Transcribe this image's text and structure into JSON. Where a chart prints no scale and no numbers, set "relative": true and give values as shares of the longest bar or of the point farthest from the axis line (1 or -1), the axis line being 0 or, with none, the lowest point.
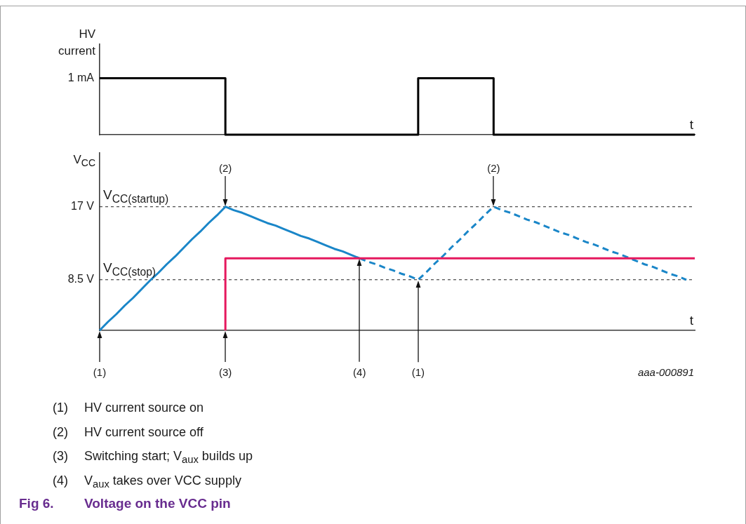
{
  "chart_data": [
    {
      "type": "step",
      "relative": true,
      "ylabel": "HV current",
      "xlabel": "t",
      "categories": [
        null,
        null,
        null,
        null,
        null,
        null,
        null,
        null,
        null,
        null,
        null,
        null,
        null,
        null,
        null,
        null,
        null,
        null,
        null,
        null,
        null,
        null,
        null,
        null,
        null,
        null,
        null,
        null,
        null,
        null,
        null,
        null,
        null,
        null,
        null,
        null,
        null,
        null,
        null,
        null,
        null,
        null,
        null,
        null,
        null,
        null,
        null,
        null,
        null,
        null,
        null,
        null,
        null,
        null,
        null,
        null,
        null,
        null,
        null,
        null,
        null,
        null,
        null,
        null,
        null,
        null,
        null,
        null,
        null,
        null,
        null,
        null
      ],
      "color": "#000000",
      "values": [
        1,
        1,
        1,
        1,
        1,
        1,
        1,
        1,
        1,
        1,
        1,
        1,
        1,
        1,
        1,
        1,
        0,
        0,
        0,
        0,
        0,
        0,
        0,
        0,
        0,
        0,
        0,
        0,
        0,
        0,
        0,
        0,
        0,
        0,
        0,
        0,
        0,
        0,
        0,
        1,
        1,
        1,
        1,
        1,
        1,
        1,
        1,
        1,
        0,
        0,
        0,
        0,
        0,
        0,
        0,
        0,
        0,
        0,
        0,
        0,
        0,
        0,
        0,
        0,
        0,
        0,
        0,
        0,
        0,
        0,
        0,
        0
      ],
      "annotations": [
        "1 mA"
      ]
    },
    {
      "type": "line",
      "title": "Fig 6.\tVoltage on the VCC pin",
      "ylabel": "V$_{CC}$",
      "xlabel": "t",
      "categories": [
        "(1)",
        null,
        null,
        null,
        null,
        null,
        null,
        null,
        null,
        null,
        null,
        null,
        null,
        null,
        null,
        "(3)",
        null,
        null,
        null,
        null,
        null,
        null,
        null,
        null,
        null,
        null,
        null,
        null,
        null,
        null,
        null,
        "(4)",
        null,
        null,
        null,
        null,
        null,
        null,
        "(1)",
        null,
        null,
        null,
        null,
        null,
        null,
        null,
        null,
        null,
        null,
        null,
        null,
        null,
        null,
        null,
        null,
        null,
        null,
        null,
        null,
        null,
        null,
        null,
        null,
        null,
        null,
        null,
        null,
        null,
        null,
        null,
        null,
        null
      ],
      "ylim": [
        2.6,
        23.3
      ],
      "yticks": [
        {
          "value": 17,
          "label": "17 V"
        },
        {
          "value": 8.5,
          "label": "8.5 V"
        }
      ],
      "ref_lines": [
        {
          "axis": "y",
          "value": 17,
          "label": "V$_{CC(startup)}$",
          "color": "#222222",
          "line_style": "dashed"
        },
        {
          "axis": "y",
          "value": 8.5,
          "label": "V$_{CC(stop)}$",
          "color": "#222222",
          "line_style": "dashed"
        }
      ],
      "series": [
        {
          "type": "line",
          "color": "#1a86c8",
          "values": [
            2.6,
            3.6,
            4.5,
            5.5,
            6.4,
            7.4,
            8.4,
            9.3,
            10.3,
            11.2,
            12.2,
            13.2,
            14.1,
            15.1,
            16.0,
            17.0,
            16.6,
            16.3,
            15.9,
            15.5,
            15.1,
            14.8,
            14.4,
            14.0,
            13.6,
            13.3,
            12.9,
            12.5,
            12.1,
            11.8,
            11.4,
            11.0,
            null,
            null,
            null,
            null,
            null,
            null,
            null,
            null,
            null,
            null,
            null,
            null,
            null,
            null,
            null,
            null,
            null,
            null,
            null,
            null,
            null,
            null,
            null,
            null,
            null,
            null,
            null,
            null,
            null,
            null,
            null,
            null,
            null,
            null,
            null,
            null,
            null,
            null,
            null,
            null
          ]
        },
        {
          "type": "line",
          "color": "#1a86c8",
          "line_style": "dashed",
          "values": [
            null,
            null,
            null,
            null,
            null,
            null,
            null,
            null,
            null,
            null,
            null,
            null,
            null,
            null,
            null,
            null,
            null,
            null,
            null,
            null,
            null,
            null,
            null,
            null,
            null,
            null,
            null,
            null,
            null,
            null,
            null,
            11.0,
            10.6,
            10.3,
            9.9,
            9.6,
            9.2,
            8.9,
            8.5,
            9.4,
            10.4,
            11.3,
            12.3,
            13.2,
            14.2,
            15.1,
            16.1,
            17.0,
            16.6,
            16.3,
            15.9,
            15.5,
            15.2,
            14.8,
            14.4,
            14.0,
            13.7,
            13.3,
            12.9,
            12.6,
            12.2,
            11.8,
            11.5,
            11.1,
            10.7,
            10.3,
            10.0,
            9.6,
            9.2,
            8.9,
            8.5,
            null
          ]
        },
        {
          "type": "step",
          "color": "#e5185e",
          "values": [
            null,
            null,
            null,
            null,
            null,
            null,
            null,
            null,
            null,
            null,
            null,
            null,
            null,
            null,
            null,
            2.6,
            11.0,
            11.0,
            11.0,
            11.0,
            11.0,
            11.0,
            11.0,
            11.0,
            11.0,
            11.0,
            11.0,
            11.0,
            11.0,
            11.0,
            11.0,
            11.0,
            11.0,
            11.0,
            11.0,
            11.0,
            11.0,
            11.0,
            11.0,
            11.0,
            11.0,
            11.0,
            11.0,
            11.0,
            11.0,
            11.0,
            11.0,
            11.0,
            11.0,
            11.0,
            11.0,
            11.0,
            11.0,
            11.0,
            11.0,
            11.0,
            11.0,
            11.0,
            11.0,
            11.0,
            11.0,
            11.0,
            11.0,
            11.0,
            11.0,
            11.0,
            11.0,
            11.0,
            11.0,
            11.0,
            11.0,
            11.0
          ]
        }
      ],
      "annotations": [
        "(2)",
        "(2)",
        "aaa-000891",
        "(1)\tHV current source on",
        "(2)\tHV current source off",
        "(3)\tSwitching start; V$_{aux}$ builds up",
        "(4)\tV$_{aux}$ takes over VCC supply"
      ]
    }
  ]
}
